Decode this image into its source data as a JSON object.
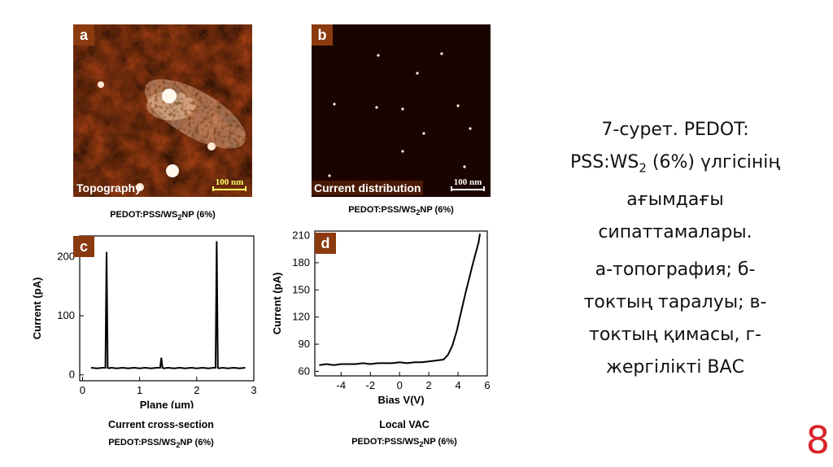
{
  "panel_a": {
    "letter": "a",
    "label": "Topography",
    "scale": "100 nm",
    "caption_pre": "PEDOT:PSS/WS",
    "caption_sub": "2",
    "caption_post": "NP (6%)"
  },
  "panel_b": {
    "letter": "b",
    "label": "Current distribution",
    "scale": "100 nm",
    "caption_pre": "PEDOT:PSS/WS",
    "caption_sub": "2",
    "caption_post": "NP (6%)"
  },
  "chart_data": [
    {
      "id": "c",
      "type": "line",
      "letter": "c",
      "title": "Current cross-section",
      "caption": "PEDOT:PSS/WS2NP (6%)",
      "xlabel": "Plane (μm)",
      "ylabel": "Current (pA)",
      "xlim": [
        -0.05,
        3.0
      ],
      "ylim": [
        -10,
        235
      ],
      "xticks": [
        0,
        1,
        2,
        3
      ],
      "yticks": [
        0,
        100,
        200
      ],
      "series": [
        {
          "x": [
            0.15,
            0.25,
            0.35,
            0.4,
            0.42,
            0.44,
            0.46,
            0.5,
            0.6,
            0.7,
            0.8,
            0.9,
            1.0,
            1.1,
            1.2,
            1.3,
            1.36,
            1.38,
            1.4,
            1.42,
            1.5,
            1.6,
            1.7,
            1.8,
            1.9,
            2.0,
            2.1,
            2.2,
            2.3,
            2.33,
            2.35,
            2.37,
            2.39,
            2.45,
            2.55,
            2.65,
            2.75,
            2.85
          ],
          "y": [
            12,
            11,
            12,
            12,
            208,
            12,
            11,
            12,
            11,
            12,
            11,
            12,
            11,
            12,
            11,
            12,
            12,
            29,
            12,
            11,
            12,
            11,
            12,
            11,
            12,
            11,
            12,
            11,
            12,
            12,
            226,
            12,
            11,
            12,
            11,
            12,
            11,
            12
          ]
        }
      ]
    },
    {
      "id": "d",
      "type": "line",
      "letter": "d",
      "title": "Local VAC",
      "caption": "PEDOT:PSS/WS2NP (6%)",
      "xlabel": "Bias V(V)",
      "ylabel": "Current (pA)",
      "xlim": [
        -5.8,
        6.0
      ],
      "ylim": [
        55,
        215
      ],
      "xticks": [
        -4,
        -2,
        0,
        2,
        4,
        6
      ],
      "yticks": [
        60,
        90,
        120,
        150,
        180,
        210
      ],
      "series": [
        {
          "x": [
            -5.5,
            -5.0,
            -4.5,
            -4.0,
            -3.5,
            -3.0,
            -2.5,
            -2.0,
            -1.5,
            -1.0,
            -0.5,
            0,
            0.5,
            1.0,
            1.5,
            2.0,
            2.5,
            3.0,
            3.3,
            3.6,
            3.9,
            4.2,
            4.5,
            4.8,
            5.0,
            5.2,
            5.4,
            5.5
          ],
          "y": [
            67,
            68,
            67,
            68,
            68,
            68,
            69,
            68,
            69,
            69,
            69,
            70,
            69,
            70,
            70,
            71,
            72,
            73,
            78,
            88,
            104,
            125,
            146,
            165,
            178,
            190,
            202,
            212
          ]
        }
      ]
    }
  ],
  "right_caption": {
    "line1": "7-сурет. PEDOT:",
    "line2_pre": "PSS:WS",
    "line2_sub": "2",
    "line2_post": " (6%) үлгісінің",
    "line3": "ағымдағы",
    "line4": "сипаттамалары.",
    "line5": "а-топография; б-",
    "line6": "токтың таралуы; в-",
    "line7": "токтың қимасы, г-",
    "line8": "жергілікті ВАС"
  },
  "page_number": "8",
  "colors": {
    "letter_bg": "#8b3a10",
    "topo_dark": "#3b0d00",
    "topo_mid": "#a0401a",
    "topo_light": "#f0c8a0",
    "current_bg": "#1a0400",
    "scale_a": "#ffff66",
    "scale_b": "#ffffff",
    "page_number": "#d9242a"
  }
}
